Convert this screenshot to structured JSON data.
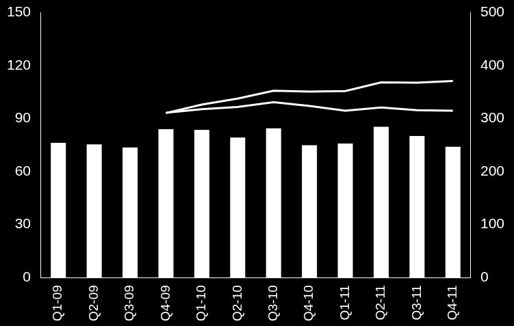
{
  "chart_data": {
    "type": "bar",
    "categories": [
      "Q1-09",
      "Q2-09",
      "Q3-09",
      "Q4-09",
      "Q1-10",
      "Q2-10",
      "Q3-10",
      "Q4-10",
      "Q1-11",
      "Q2-11",
      "Q3-11",
      "Q4-11"
    ],
    "series": [
      {
        "type": "bar",
        "color": "#ffffff",
        "values": [
          76.3,
          75.4,
          73.7,
          84.1,
          83.7,
          79.3,
          84.5,
          75.0,
          75.9,
          85.4,
          80.2,
          74.1
        ]
      },
      {
        "type": "line",
        "axis": "y2",
        "color": "#ffffff",
        "values": [
          null,
          null,
          null,
          310.7,
          326.6,
          338,
          352.6,
          351,
          352,
          368.5,
          368,
          371
        ]
      },
      {
        "type": "line",
        "axis": "y2",
        "color": "#ffffff",
        "values": [
          null,
          null,
          null,
          311,
          318,
          322,
          331,
          324,
          315,
          321,
          316,
          315
        ]
      }
    ],
    "ylim": [
      0,
      150
    ],
    "yticks": [
      0,
      30,
      60,
      90,
      120,
      150
    ],
    "y2lim": [
      0,
      500
    ],
    "y2ticks": [
      0,
      100,
      200,
      300,
      400,
      500
    ],
    "grid": false
  }
}
